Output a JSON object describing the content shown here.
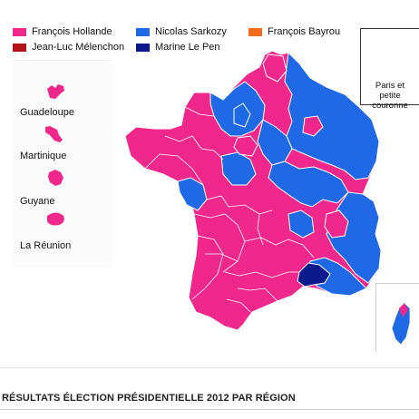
{
  "legend": {
    "items": [
      {
        "label": "François Hollande",
        "color": "#f0288c"
      },
      {
        "label": "Nicolas Sarkozy",
        "color": "#1f69e6"
      },
      {
        "label": "François Bayrou",
        "color": "#f26a1b"
      },
      {
        "label": "Jean-Luc Mélenchon",
        "color": "#b31217"
      },
      {
        "label": "Marine Le Pen",
        "color": "#0a1a8c"
      }
    ]
  },
  "overseas": {
    "items": [
      {
        "label": "Guadeloupe",
        "color": "#f0288c"
      },
      {
        "label": "Martinique",
        "color": "#f0288c"
      },
      {
        "label": "Guyane",
        "color": "#f0288c"
      },
      {
        "label": "La Réunion",
        "color": "#f0288c"
      }
    ]
  },
  "inset": {
    "line1": "Paris et",
    "line2": "petite couronne"
  },
  "caption": "RÉSULTATS ÉLECTION PRÉSIDENTIELLE 2012 PAR RÉGION",
  "colors": {
    "hollande": "#f0288c",
    "sarkozy": "#1f69e6",
    "lepen": "#0a1a8c",
    "border": "#ffffff"
  }
}
